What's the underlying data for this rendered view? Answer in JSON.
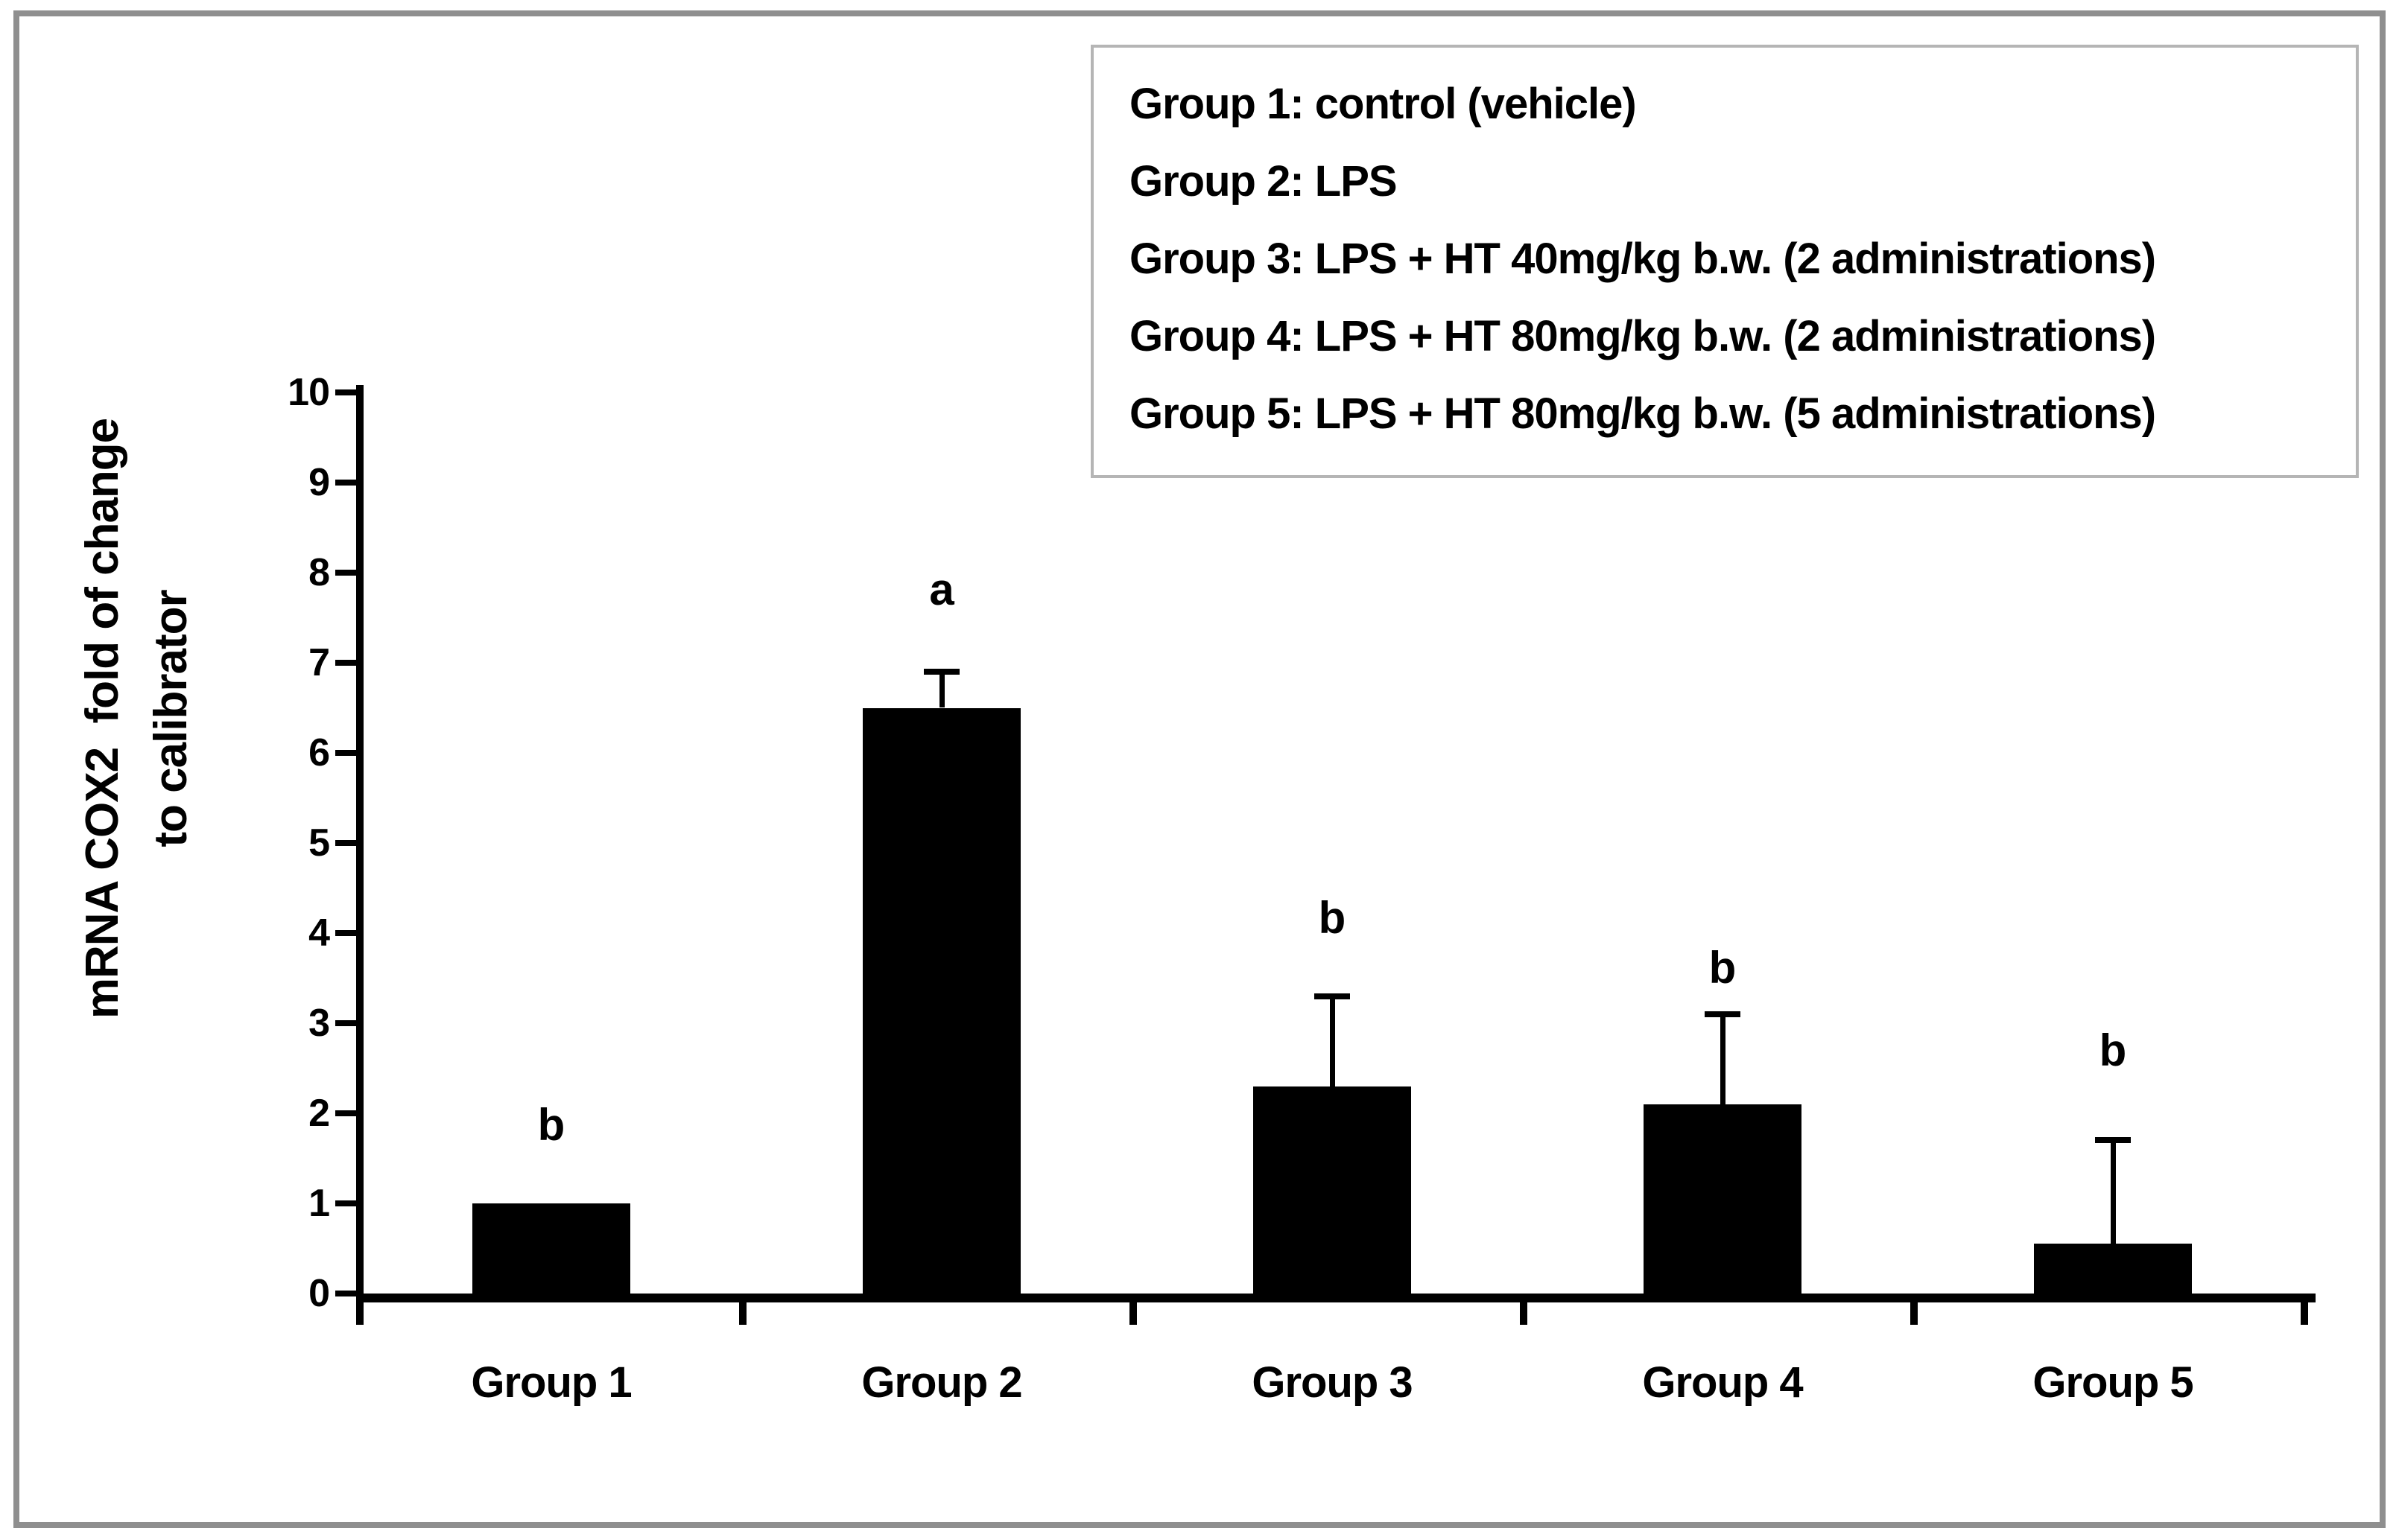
{
  "legend": {
    "lines": [
      "Group 1: control (vehicle)",
      "Group 2: LPS",
      "Group 3: LPS + HT 40mg/kg b.w. (2 administrations)",
      "Group 4: LPS + HT 80mg/kg b.w. (2 administrations)",
      "Group 5: LPS + HT 80mg/kg b.w. (5 administrations)"
    ]
  },
  "y_axis": {
    "title_line1": "mRNA COX2  fold of change",
    "title_line2": "to calibrator"
  },
  "chart_data": {
    "type": "bar",
    "title": "",
    "categories": [
      "Group 1",
      "Group 2",
      "Group 3",
      "Group 4",
      "Group 5"
    ],
    "values": [
      1.0,
      6.5,
      2.3,
      2.1,
      0.55
    ],
    "error_plus": [
      0,
      0.4,
      1.0,
      1.0,
      1.15
    ],
    "sig_letters": [
      "b",
      "a",
      "b",
      "b",
      "b"
    ],
    "ylabel": "mRNA COX2 fold of change to calibrator",
    "xlabel": "",
    "ylim": [
      0,
      10
    ],
    "ytick_step": 1,
    "grid": false,
    "legend_position": "top-right",
    "bar_color": "#000000"
  },
  "colors": {
    "background": "#ffffff",
    "bar": "#000000",
    "text": "#000000",
    "frame_border": "#8f8f8f",
    "legend_border": "#b5b5b5"
  }
}
